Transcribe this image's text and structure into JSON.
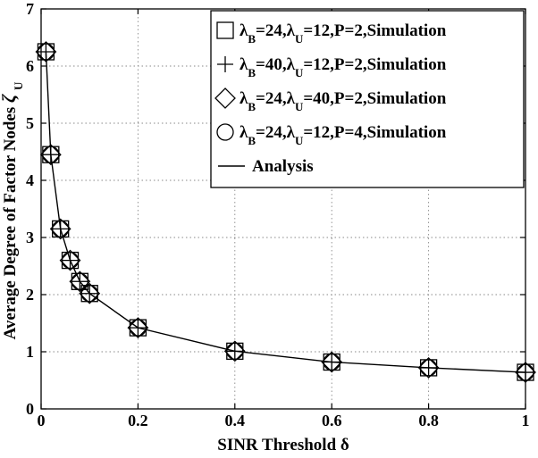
{
  "chart_data": {
    "type": "line",
    "xlabel": "SINR Threshold δ",
    "ylabel_text": "Average Degree of Factor Nodes",
    "ylabel_symbol": "ζ",
    "ylabel_sub": "U",
    "xlim": [
      0,
      1
    ],
    "ylim": [
      0,
      7
    ],
    "x_ticks": [
      "0",
      "0.2",
      "0.4",
      "0.6",
      "0.8",
      "1"
    ],
    "y_ticks": [
      "0",
      "1",
      "2",
      "3",
      "4",
      "5",
      "6",
      "7"
    ],
    "grid": true,
    "legend_position": "top-right",
    "x": [
      0.01,
      0.02,
      0.04,
      0.06,
      0.08,
      0.1,
      0.2,
      0.4,
      0.6,
      0.8,
      1.0
    ],
    "series": [
      {
        "marker": "square",
        "legend": {
          "b": "24",
          "u": "12",
          "p": "2",
          "tail": "Simulation"
        },
        "values": [
          6.25,
          4.45,
          3.15,
          2.6,
          2.23,
          2.02,
          1.42,
          1.01,
          0.82,
          0.72,
          0.64
        ]
      },
      {
        "marker": "plus",
        "legend": {
          "b": "40",
          "u": "12",
          "p": "2",
          "tail": "Simulation"
        },
        "values": [
          6.25,
          4.45,
          3.15,
          2.6,
          2.23,
          2.02,
          1.42,
          1.01,
          0.82,
          0.72,
          0.64
        ]
      },
      {
        "marker": "diamond",
        "legend": {
          "b": "24",
          "u": "40",
          "p": "2",
          "tail": "Simulation"
        },
        "values": [
          6.25,
          4.45,
          3.15,
          2.6,
          2.23,
          2.02,
          1.42,
          1.01,
          0.82,
          0.72,
          0.64
        ]
      },
      {
        "marker": "circle",
        "legend": {
          "b": "24",
          "u": "12",
          "p": "4",
          "tail": "Simulation"
        },
        "values": [
          6.25,
          4.45,
          3.15,
          2.6,
          2.23,
          2.02,
          1.42,
          1.01,
          0.82,
          0.72,
          0.64
        ]
      },
      {
        "marker": "line",
        "name": "Analysis",
        "values": [
          6.25,
          4.45,
          3.15,
          2.6,
          2.23,
          2.02,
          1.42,
          1.01,
          0.82,
          0.72,
          0.64
        ]
      }
    ]
  }
}
